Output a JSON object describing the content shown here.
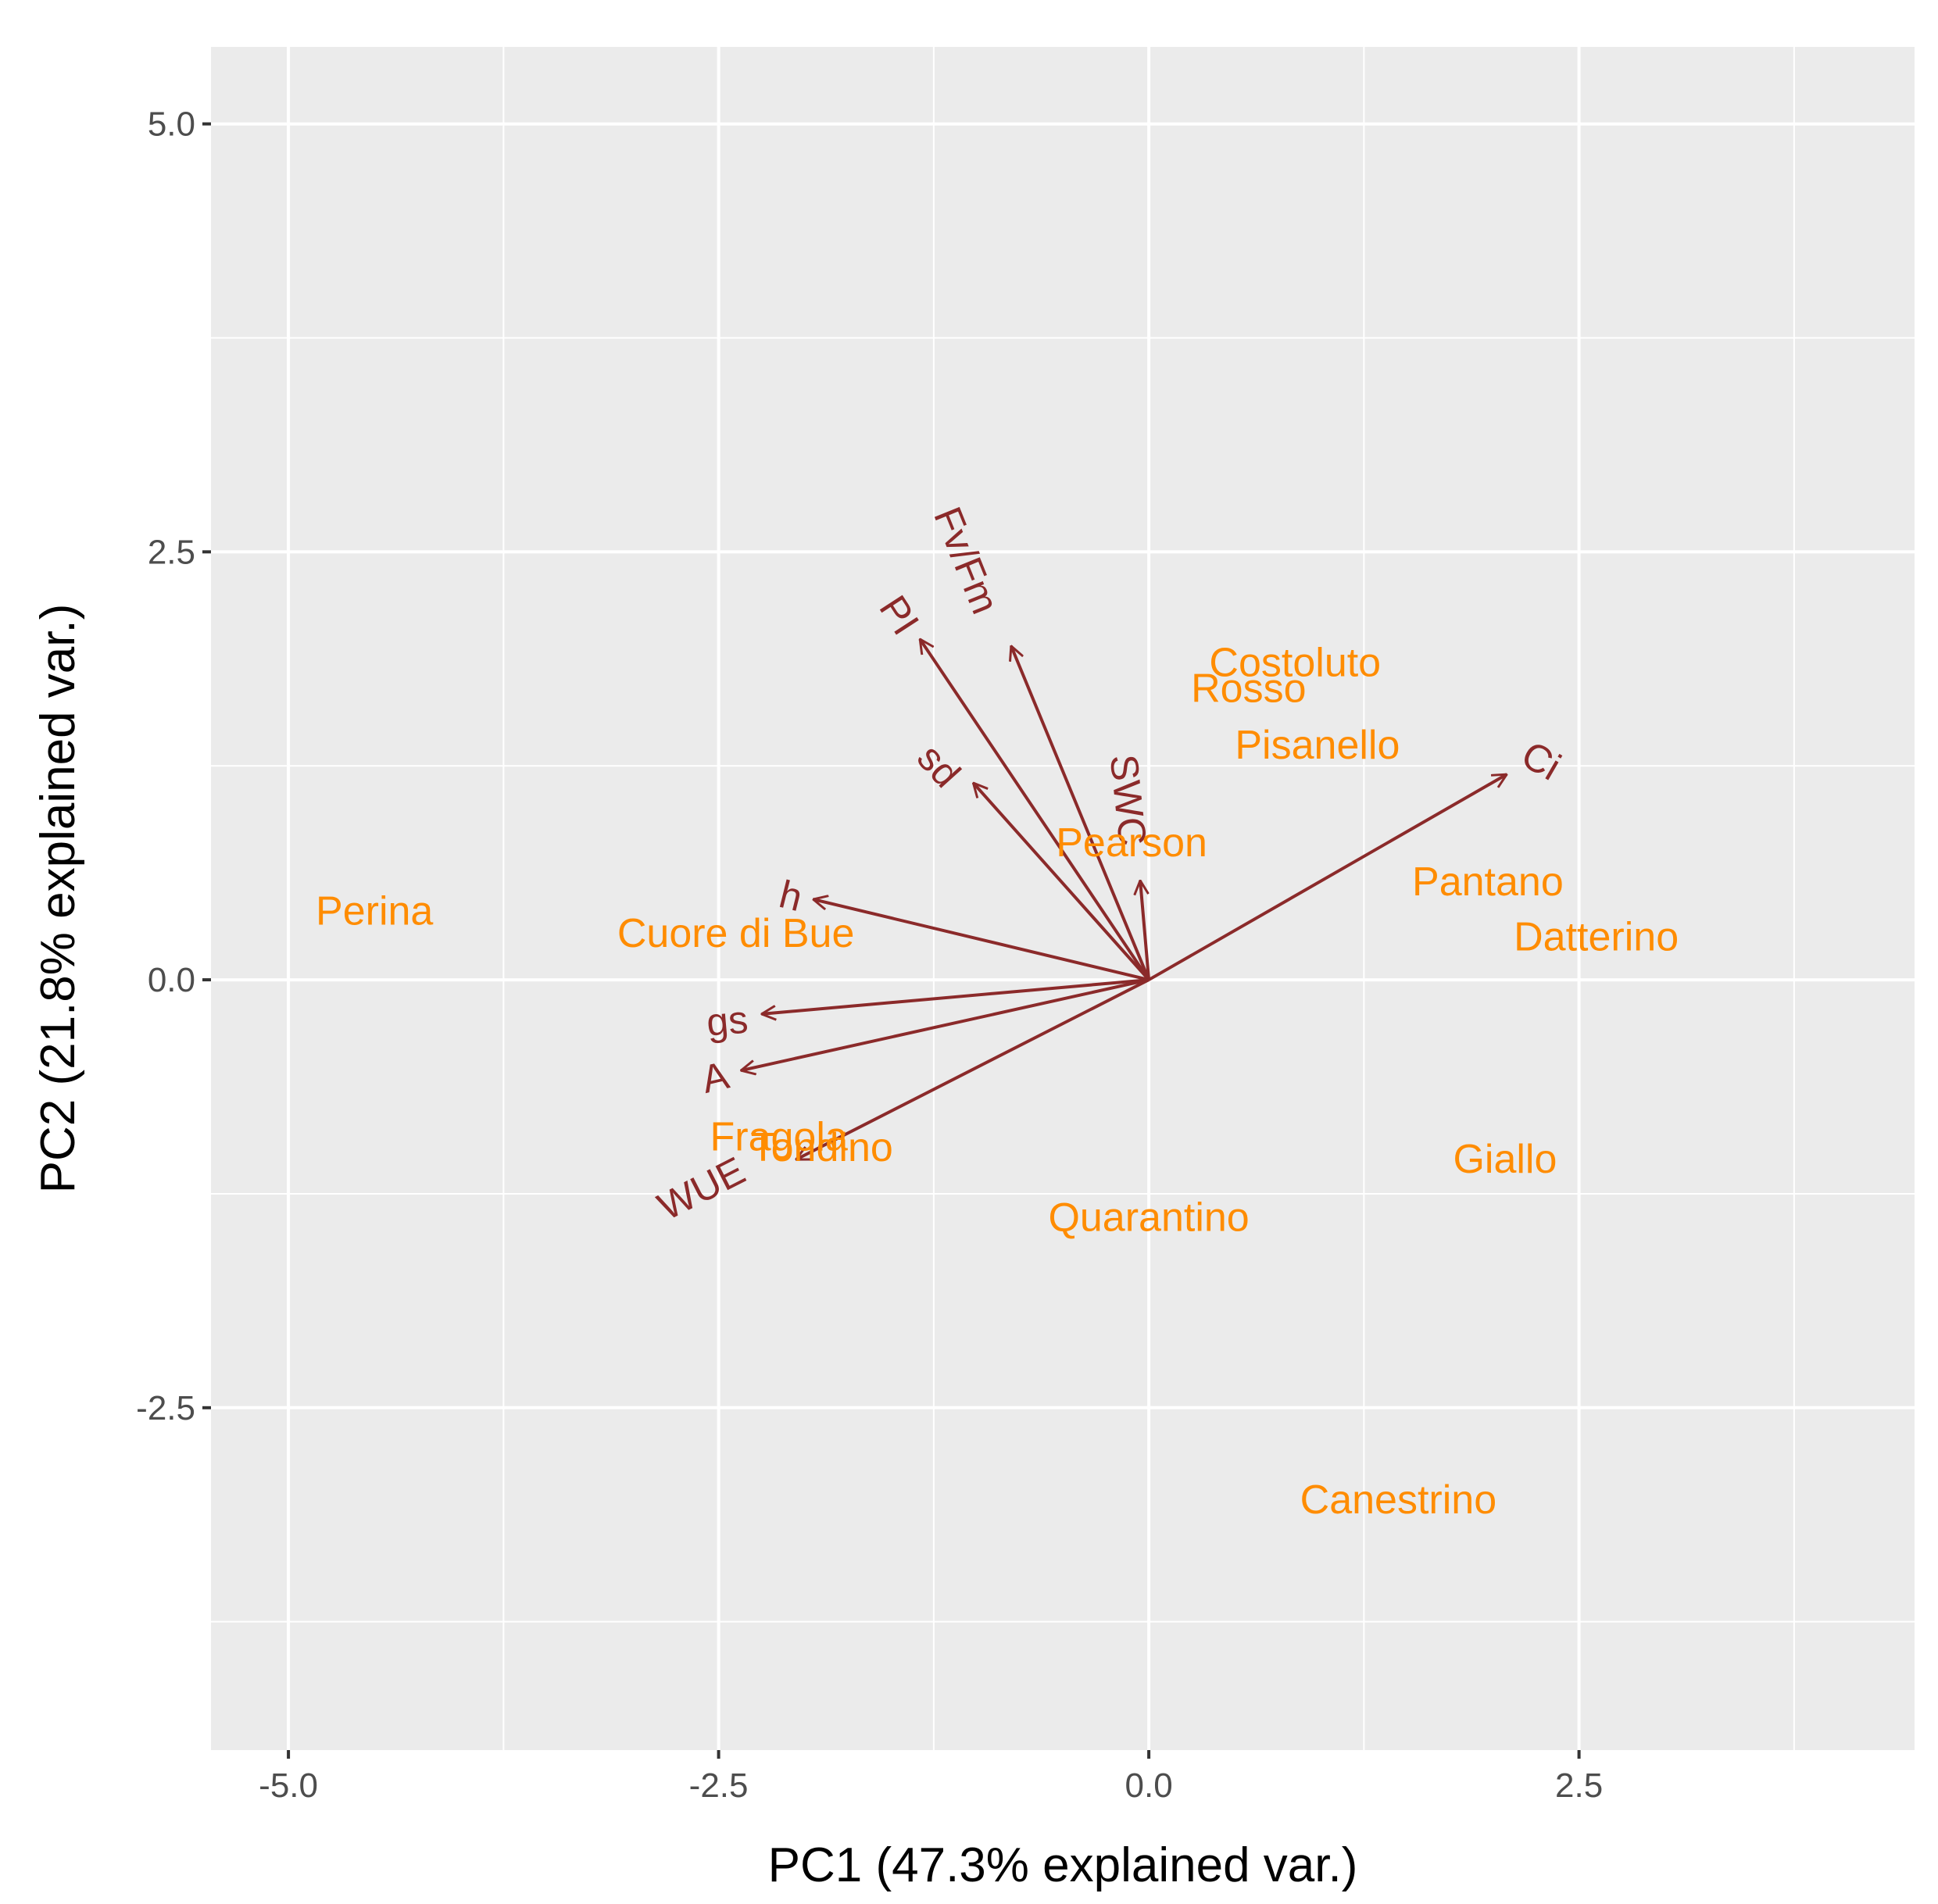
{
  "chart_data": {
    "type": "scatter",
    "subtype": "pca-biplot",
    "title": "",
    "xlabel": "PC1 (47.3% explained var.)",
    "ylabel": "PC2 (21.8% explained var.)",
    "xlim": [
      -5.45,
      4.45
    ],
    "ylim": [
      -4.5,
      5.45
    ],
    "x_ticks": [
      {
        "value": -5.0,
        "label": "-5.0"
      },
      {
        "value": -2.5,
        "label": "-2.5"
      },
      {
        "value": 0.0,
        "label": "0.0"
      },
      {
        "value": 2.5,
        "label": "2.5"
      }
    ],
    "y_ticks": [
      {
        "value": 5.0,
        "label": "5.0"
      },
      {
        "value": 2.5,
        "label": "2.5"
      },
      {
        "value": 0.0,
        "label": "0.0"
      },
      {
        "value": -2.5,
        "label": "-2.5"
      }
    ],
    "x_minor": [
      -3.75,
      -1.25,
      1.25,
      3.75
    ],
    "y_minor": [
      3.75,
      1.25,
      -1.25,
      -3.75
    ],
    "grid": true,
    "colors": {
      "panel": "#ebebeb",
      "grid": "#ffffff",
      "points": "#ff8c00",
      "vectors": "#8b2a2a",
      "ticks": "#333333"
    },
    "points": [
      {
        "label": "Perina",
        "x": -4.5,
        "y": 0.4
      },
      {
        "label": "Cuore di Bue",
        "x": -2.4,
        "y": 0.27
      },
      {
        "label": "Costoluto",
        "x": 0.85,
        "y": 1.85
      },
      {
        "label": "Rosso",
        "x": 0.58,
        "y": 1.7
      },
      {
        "label": "Pisanello",
        "x": 0.98,
        "y": 1.37
      },
      {
        "label": "Pearson",
        "x": -0.1,
        "y": 0.8
      },
      {
        "label": "Pantano",
        "x": 1.97,
        "y": 0.57
      },
      {
        "label": "Datterino",
        "x": 2.6,
        "y": 0.25
      },
      {
        "label": "Fragola",
        "x": -2.15,
        "y": -0.92
      },
      {
        "label": "Tondino",
        "x": -1.9,
        "y": -0.98
      },
      {
        "label": "Giallo",
        "x": 2.07,
        "y": -1.05
      },
      {
        "label": "Quarantino",
        "x": 0.0,
        "y": -1.39
      },
      {
        "label": "Canestrino",
        "x": 1.45,
        "y": -3.04
      }
    ],
    "vectors": [
      {
        "name": "Fv/Fm",
        "x": -0.8,
        "y": 1.95,
        "label_x": -1.06,
        "label_y": 2.45,
        "label_angle": 68
      },
      {
        "name": "PI",
        "x": -1.33,
        "y": 1.99,
        "label_x": -1.45,
        "label_y": 2.13,
        "label_angle": 57
      },
      {
        "name": "sd",
        "x": -1.02,
        "y": 1.15,
        "label_x": -1.22,
        "label_y": 1.25,
        "label_angle": 48
      },
      {
        "name": "SWC",
        "x": -0.05,
        "y": 0.58,
        "label_x": -0.12,
        "label_y": 1.05,
        "label_angle": 84
      },
      {
        "name": "h",
        "x": -1.95,
        "y": 0.47,
        "label_x": -2.08,
        "label_y": 0.49,
        "label_angle": 14
      },
      {
        "name": "gs",
        "x": -2.25,
        "y": -0.2,
        "label_x": -2.45,
        "label_y": -0.24,
        "label_angle": -5
      },
      {
        "name": "A",
        "x": -2.37,
        "y": -0.53,
        "label_x": -2.52,
        "label_y": -0.57,
        "label_angle": -13
      },
      {
        "name": "WUE",
        "x": -2.05,
        "y": -1.05,
        "label_x": -2.6,
        "label_y": -1.22,
        "label_angle": -27
      },
      {
        "name": "Ci",
        "x": 2.08,
        "y": 1.2,
        "label_x": 2.28,
        "label_y": 1.28,
        "label_angle": 30
      }
    ]
  }
}
